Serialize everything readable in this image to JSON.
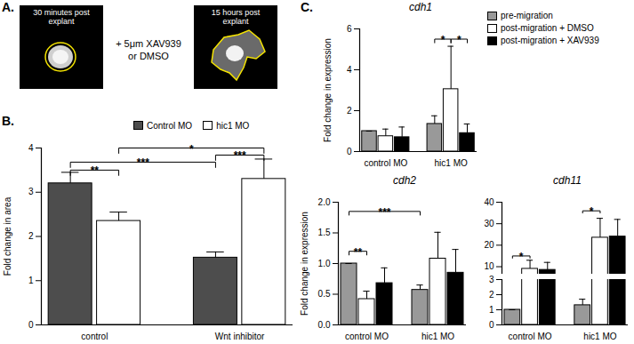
{
  "panel_a": {
    "label": "A.",
    "before": [
      "30 minutes post",
      "explant"
    ],
    "treatment": [
      "+ 5μm XAV939",
      "or DMSO"
    ],
    "after": [
      "15 hours post",
      "explant"
    ]
  },
  "chart_data": [
    {
      "type": "bar",
      "panel_label": "B.",
      "ylabel": "Fold change in area",
      "categories": [
        "control",
        "Wnt inhibitor"
      ],
      "series": [
        {
          "name": "Control MO",
          "color": "#4d4d4d",
          "values": [
            3.2,
            1.52
          ],
          "errors": [
            0.25,
            0.13
          ]
        },
        {
          "name": "hic1 MO",
          "color": "#ffffff",
          "values": [
            2.35,
            3.3
          ],
          "errors": [
            0.2,
            0.45
          ]
        }
      ],
      "ylim": [
        0,
        4
      ],
      "yticks": [
        0,
        1,
        2,
        3,
        4
      ],
      "legend": "top-right",
      "significance": [
        {
          "label": "**",
          "from": [
            "control",
            "Control MO"
          ],
          "to": [
            "control",
            "hic1 MO"
          ],
          "y": 3.5
        },
        {
          "label": "***",
          "from": [
            "control",
            "Control MO"
          ],
          "to": [
            "Wnt inhibitor",
            "Control MO"
          ],
          "y": 3.68
        },
        {
          "label": "***",
          "from": [
            "Wnt inhibitor",
            "Control MO"
          ],
          "to": [
            "Wnt inhibitor",
            "hic1 MO"
          ],
          "y": 3.84
        },
        {
          "label": "*",
          "from": [
            "control",
            "hic1 MO"
          ],
          "to": [
            "Wnt inhibitor",
            "hic1 MO"
          ],
          "y": 4
        }
      ]
    },
    {
      "type": "bar",
      "panel_label": "C.",
      "title": "cdh1",
      "ylabel": "Fold change in expression",
      "categories": [
        "control MO",
        "hic1 MO"
      ],
      "series": [
        {
          "name": "pre-migration",
          "color": "#999999",
          "values": [
            1.0,
            1.35
          ],
          "errors": [
            0,
            0.4
          ]
        },
        {
          "name": "post-migration + DMSO",
          "color": "#ffffff",
          "values": [
            0.75,
            3.05
          ],
          "errors": [
            0.35,
            2.1
          ]
        },
        {
          "name": "post-migration + XAV939",
          "color": "#000000",
          "values": [
            0.7,
            0.9
          ],
          "errors": [
            0.5,
            0.45
          ]
        }
      ],
      "ylim": [
        0,
        6
      ],
      "yticks": [
        0,
        2,
        4,
        6
      ],
      "legend": "top-right",
      "significance": [
        {
          "label": "*",
          "from": [
            "hic1 MO",
            "pre-migration"
          ],
          "to": [
            "hic1 MO",
            "post-migration + DMSO"
          ],
          "y": 5.5
        },
        {
          "label": "*",
          "from": [
            "hic1 MO",
            "post-migration + DMSO"
          ],
          "to": [
            "hic1 MO",
            "post-migration + XAV939"
          ],
          "y": 5.5
        }
      ]
    },
    {
      "type": "bar",
      "title": "cdh2",
      "ylabel": "Fold change in expression",
      "categories": [
        "control MO",
        "hic1 MO"
      ],
      "series": [
        {
          "name": "pre-migration",
          "color": "#999999",
          "values": [
            1.0,
            0.57
          ],
          "errors": [
            0,
            0.08
          ]
        },
        {
          "name": "post-migration + DMSO",
          "color": "#ffffff",
          "values": [
            0.42,
            1.08
          ],
          "errors": [
            0.13,
            0.43
          ]
        },
        {
          "name": "post-migration + XAV939",
          "color": "#000000",
          "values": [
            0.68,
            0.85
          ],
          "errors": [
            0.25,
            0.38
          ]
        }
      ],
      "ylim": [
        0,
        2
      ],
      "yticks": [
        {
          "value": 0,
          "label": "0.0"
        },
        {
          "value": 0.5,
          "label": "0.5"
        },
        {
          "value": 1,
          "label": "1.0"
        },
        {
          "value": 1.5,
          "label": "1.5"
        },
        {
          "value": 2,
          "label": "2.0"
        }
      ],
      "significance": [
        {
          "label": "**",
          "from": [
            "control MO",
            "pre-migration"
          ],
          "to": [
            "control MO",
            "post-migration + DMSO"
          ],
          "y": 1.2
        },
        {
          "label": "***",
          "from": [
            "control MO",
            "pre-migration"
          ],
          "to": [
            "hic1 MO",
            "pre-migration"
          ],
          "y": 1.85
        }
      ]
    },
    {
      "type": "bar",
      "title": "cdh11",
      "categories": [
        "control MO",
        "hic1 MO"
      ],
      "series": [
        {
          "name": "pre-migration",
          "color": "#999999",
          "values": [
            1.0,
            1.3
          ],
          "errors": [
            0,
            0.4
          ]
        },
        {
          "name": "post-migration + DMSO",
          "color": "#ffffff",
          "values": [
            9,
            23.5
          ],
          "errors": [
            4,
            9
          ]
        },
        {
          "name": "post-migration + XAV939",
          "color": "#000000",
          "values": [
            8.5,
            24
          ],
          "errors": [
            3.5,
            8
          ]
        }
      ],
      "ylim": [
        0,
        40
      ],
      "yticks": [
        0,
        1,
        2,
        3,
        10,
        20,
        30,
        40
      ],
      "significance": [
        {
          "label": "*",
          "from": [
            "control MO",
            "pre-migration"
          ],
          "to": [
            "control MO",
            "post-migration + DMSO"
          ],
          "y": 15
        },
        {
          "label": "*",
          "from": [
            "hic1 MO",
            "pre-migration"
          ],
          "to": [
            "hic1 MO",
            "post-migration + DMSO"
          ],
          "y": 36
        }
      ]
    }
  ]
}
